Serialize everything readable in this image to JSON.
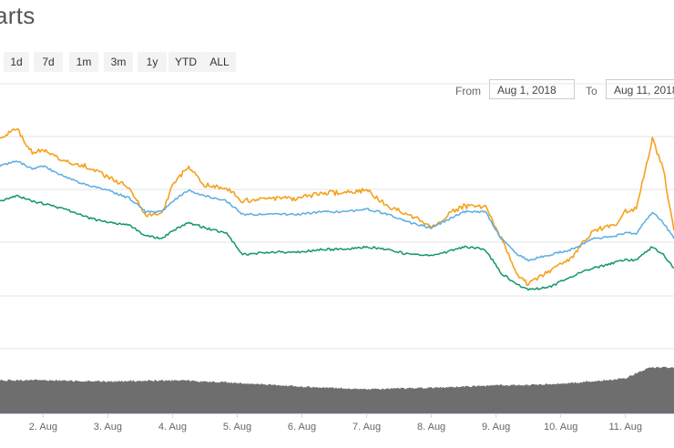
{
  "page": {
    "title": "arts"
  },
  "range_selector": {
    "buttons": [
      "1d",
      "7d",
      "1m",
      "3m",
      "1y",
      "YTD",
      "ALL"
    ]
  },
  "date_range": {
    "from_label": "From",
    "from_value": "Aug 1, 2018",
    "to_label": "To",
    "to_value": "Aug 11, 2018"
  },
  "colors": {
    "series_orange": "#f5a11c",
    "series_blue": "#5aade3",
    "series_green": "#13966a",
    "volume": "#6e6e6e",
    "grid": "#e6e6e6"
  },
  "chart_data": {
    "type": "line",
    "title": "",
    "xlabel": "",
    "ylabel": "",
    "xlim": [
      "2018-08-01T08:00",
      "2018-08-11T18:00"
    ],
    "ylim": [
      0,
      100
    ],
    "grid": true,
    "x_ticks": [
      "2. Aug",
      "3. Aug",
      "4. Aug",
      "5. Aug",
      "6. Aug",
      "7. Aug",
      "8. Aug",
      "9. Aug",
      "10. Aug",
      "11. Aug"
    ],
    "x": [
      "2018-08-01T08:00",
      "2018-08-01T14:00",
      "2018-08-01T20:00",
      "2018-08-02T00:00",
      "2018-08-02T08:00",
      "2018-08-02T16:00",
      "2018-08-03T00:00",
      "2018-08-03T08:00",
      "2018-08-03T14:00",
      "2018-08-03T20:00",
      "2018-08-04T00:00",
      "2018-08-04T06:00",
      "2018-08-04T12:00",
      "2018-08-04T20:00",
      "2018-08-05T02:00",
      "2018-08-05T12:00",
      "2018-08-05T22:00",
      "2018-08-06T08:00",
      "2018-08-06T16:00",
      "2018-08-07T00:00",
      "2018-08-07T08:00",
      "2018-08-07T16:00",
      "2018-08-08T00:00",
      "2018-08-08T06:00",
      "2018-08-08T12:00",
      "2018-08-08T20:00",
      "2018-08-09T02:00",
      "2018-08-09T08:00",
      "2018-08-09T12:00",
      "2018-08-09T20:00",
      "2018-08-10T04:00",
      "2018-08-10T12:00",
      "2018-08-10T20:00",
      "2018-08-11T00:00",
      "2018-08-11T04:00",
      "2018-08-11T10:00",
      "2018-08-11T14:00",
      "2018-08-11T18:00"
    ],
    "series": [
      {
        "color": "#f5a11c",
        "values": [
          78,
          82,
          73,
          74,
          70,
          68,
          64,
          60,
          50,
          50,
          61,
          68,
          61,
          60,
          55,
          56,
          56,
          58,
          58,
          59,
          53,
          50,
          45,
          50,
          53,
          53,
          41,
          27,
          24,
          29,
          34,
          44,
          46,
          51,
          52,
          78,
          67,
          44
        ]
      },
      {
        "color": "#5aade3",
        "values": [
          68,
          70,
          67,
          68,
          64,
          61,
          59,
          56,
          51,
          51,
          55,
          59,
          57,
          55,
          50,
          50,
          50,
          51,
          51,
          52,
          50,
          47,
          45,
          48,
          51,
          51,
          41,
          35,
          33,
          35,
          37,
          41,
          42,
          43,
          43,
          51,
          47,
          41
        ]
      },
      {
        "color": "#13966a",
        "values": [
          55,
          57,
          55,
          54,
          52,
          49,
          47,
          46,
          42,
          41,
          44,
          47,
          45,
          43,
          35,
          36,
          36,
          37,
          37,
          38,
          37,
          35,
          35,
          36,
          38,
          37,
          28,
          24,
          22,
          23,
          27,
          30,
          32,
          33,
          33,
          38,
          35,
          30
        ]
      }
    ],
    "volume": {
      "x": [
        "2018-08-01T08:00",
        "2018-08-02T00:00",
        "2018-08-03T00:00",
        "2018-08-04T00:00",
        "2018-08-05T00:00",
        "2018-08-06T00:00",
        "2018-08-07T00:00",
        "2018-08-08T00:00",
        "2018-08-09T00:00",
        "2018-08-10T00:00",
        "2018-08-11T00:00",
        "2018-08-11T09:00",
        "2018-08-11T18:00"
      ],
      "values": [
        52,
        52,
        50,
        52,
        48,
        42,
        38,
        40,
        44,
        46,
        55,
        72,
        72
      ],
      "ylim": [
        0,
        100
      ]
    }
  }
}
